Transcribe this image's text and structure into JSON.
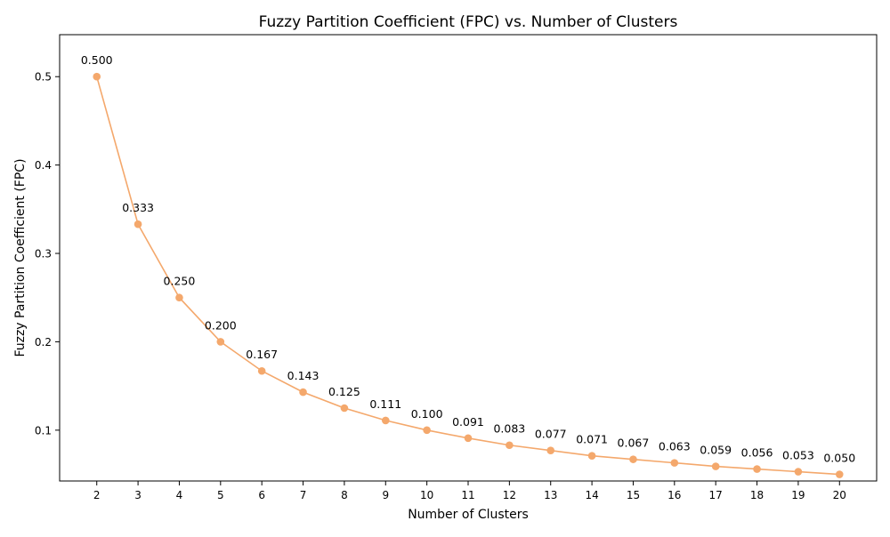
{
  "chart_data": {
    "type": "line",
    "title": "Fuzzy Partition Coefficient (FPC) vs. Number of Clusters",
    "xlabel": "Number of Clusters",
    "ylabel": "Fuzzy Partition Coefficient (FPC)",
    "x": [
      2,
      3,
      4,
      5,
      6,
      7,
      8,
      9,
      10,
      11,
      12,
      13,
      14,
      15,
      16,
      17,
      18,
      19,
      20
    ],
    "series": [
      {
        "values": [
          0.5,
          0.333,
          0.25,
          0.2,
          0.167,
          0.143,
          0.125,
          0.111,
          0.1,
          0.091,
          0.083,
          0.077,
          0.071,
          0.067,
          0.063,
          0.059,
          0.056,
          0.053,
          0.05
        ],
        "data_labels": [
          "0.500",
          "0.333",
          "0.250",
          "0.200",
          "0.167",
          "0.143",
          "0.125",
          "0.111",
          "0.100",
          "0.091",
          "0.083",
          "0.077",
          "0.071",
          "0.067",
          "0.063",
          "0.059",
          "0.056",
          "0.053",
          "0.050"
        ],
        "color": "#f4a86c"
      }
    ],
    "x_ticks": [
      2,
      3,
      4,
      5,
      6,
      7,
      8,
      9,
      10,
      11,
      12,
      13,
      14,
      15,
      16,
      17,
      18,
      19,
      20
    ],
    "y_ticks": [
      "0.1",
      "0.2",
      "0.3",
      "0.4",
      "0.5"
    ],
    "xlim": [
      1.1,
      20.9
    ],
    "ylim": [
      0.0425,
      0.5475
    ],
    "grid": false,
    "legend": "none"
  }
}
